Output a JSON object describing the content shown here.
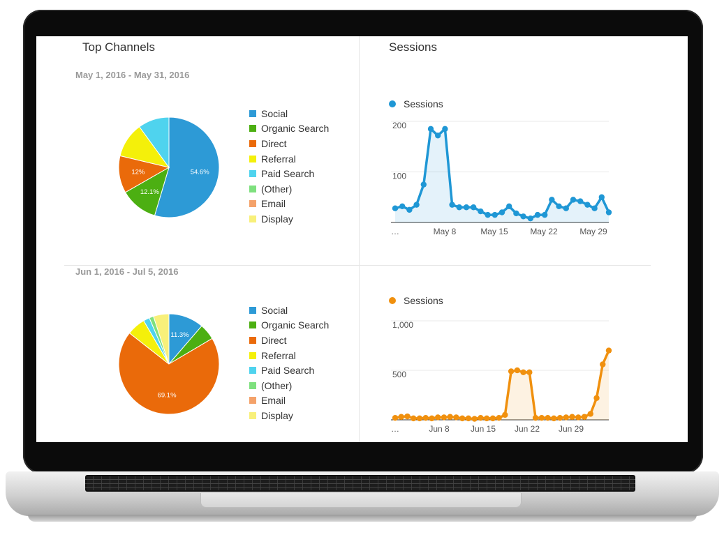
{
  "widgets": {
    "top_channels_title": "Top Channels",
    "sessions_title": "Sessions"
  },
  "colors": {
    "social": "#2d9ad6",
    "organic_search": "#4caf12",
    "direct": "#ea6a0a",
    "referral": "#f4f00a",
    "paid_search": "#4fd3ee",
    "other": "#7ee07e",
    "email": "#f4a26a",
    "display": "#f8f07a",
    "sessions_may": "#1f97d5",
    "sessions_jun": "#f0900e"
  },
  "periods": [
    {
      "date_range": "May 1, 2016 - May 31, 2016",
      "legend": [
        "Social",
        "Organic Search",
        "Direct",
        "Referral",
        "Paid Search",
        "(Other)",
        "Email",
        "Display"
      ],
      "sessions_legend": "Sessions"
    },
    {
      "date_range": "Jun 1, 2016 - Jul 5, 2016",
      "legend": [
        "Social",
        "Organic Search",
        "Direct",
        "Referral",
        "Paid Search",
        "(Other)",
        "Email",
        "Display"
      ],
      "sessions_legend": "Sessions"
    }
  ],
  "chart_data": [
    {
      "type": "pie",
      "categories": [
        "Social",
        "Organic Search",
        "Direct",
        "Referral",
        "Paid Search",
        "(Other)",
        "Email",
        "Display"
      ],
      "values": [
        54.6,
        12.1,
        12,
        11.3,
        10.0,
        0,
        0,
        0
      ],
      "labels": [
        "54.6%",
        "12.1%",
        "12%",
        "",
        "",
        "",
        "",
        ""
      ]
    },
    {
      "type": "line",
      "series": [
        {
          "name": "Sessions",
          "values": [
            28,
            32,
            25,
            35,
            75,
            185,
            172,
            185,
            35,
            30,
            30,
            30,
            22,
            15,
            15,
            20,
            32,
            18,
            12,
            8,
            15,
            15,
            45,
            32,
            28,
            45,
            42,
            35,
            28,
            50,
            20
          ]
        }
      ],
      "x_tick_labels": [
        "…",
        "May 8",
        "May 15",
        "May 22",
        "May 29"
      ],
      "y_tick_labels": [
        "200",
        "100"
      ],
      "ylim": [
        0,
        200
      ]
    },
    {
      "type": "pie",
      "categories": [
        "Social",
        "Organic Search",
        "Direct",
        "Referral",
        "Paid Search",
        "(Other)",
        "Email",
        "Display"
      ],
      "values": [
        11.3,
        5.2,
        69.1,
        6.0,
        2.0,
        1.4,
        0,
        5.0
      ],
      "labels": [
        "11.3%",
        "",
        "69.1%",
        "",
        "",
        "",
        "",
        ""
      ]
    },
    {
      "type": "line",
      "series": [
        {
          "name": "Sessions",
          "values": [
            20,
            30,
            35,
            15,
            15,
            20,
            15,
            25,
            25,
            30,
            25,
            15,
            15,
            10,
            20,
            15,
            15,
            20,
            50,
            490,
            500,
            480,
            480,
            20,
            20,
            20,
            15,
            20,
            25,
            30,
            25,
            30,
            60,
            220,
            560,
            700
          ]
        }
      ],
      "x_tick_labels": [
        "…",
        "Jun 8",
        "Jun 15",
        "Jun 22",
        "Jun 29"
      ],
      "y_tick_labels": [
        "1,000",
        "500"
      ],
      "ylim": [
        0,
        1000
      ]
    }
  ]
}
